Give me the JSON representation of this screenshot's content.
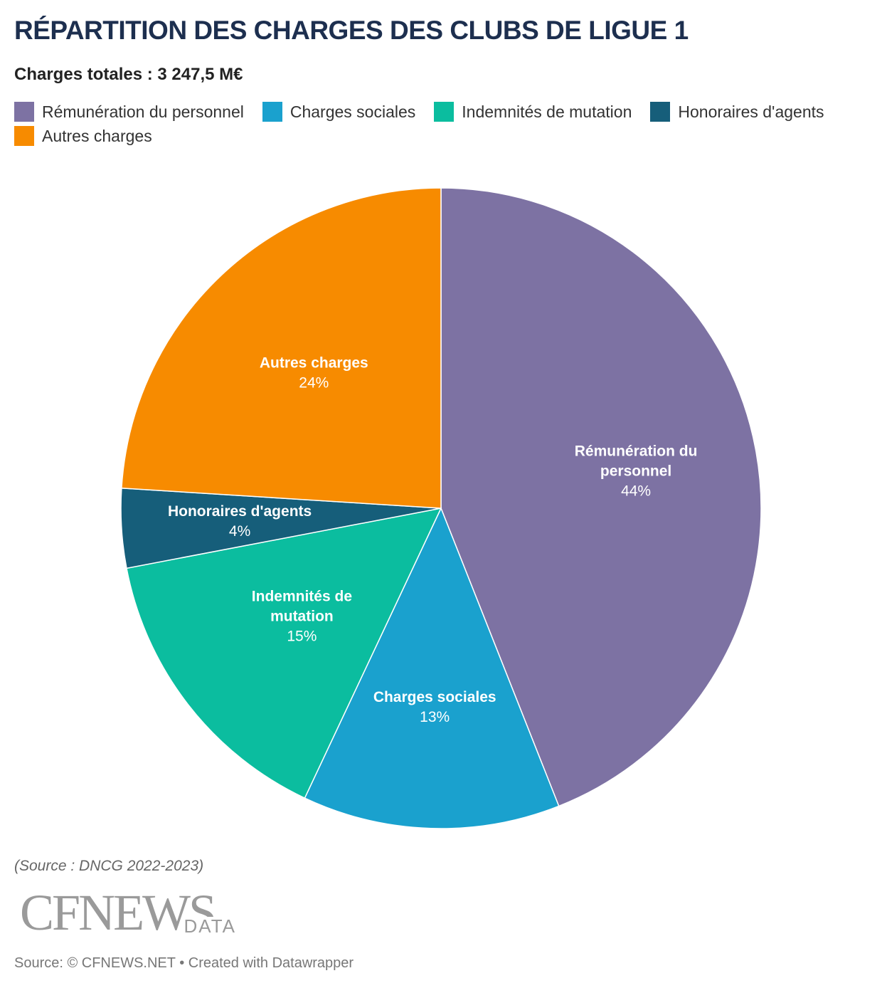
{
  "title": "RÉPARTITION DES CHARGES DES CLUBS DE LIGUE 1",
  "subtitle": "Charges totales : 3 247,5 M€",
  "source_note": "(Source : DNCG 2022-2023)",
  "logo": {
    "main": "CFNEWS",
    "sub": "DATA"
  },
  "footer": "Source: © CFNEWS.NET • Created with Datawrapper",
  "chart_data": {
    "type": "pie",
    "unit": "%",
    "slices": [
      {
        "label": "Rémunération du personnel",
        "lines": [
          "Rémunération du",
          "personnel"
        ],
        "value": 44,
        "value_label": "44%",
        "color": "#7d72a3"
      },
      {
        "label": "Charges sociales",
        "lines": [
          "Charges sociales"
        ],
        "value": 13,
        "value_label": "13%",
        "color": "#1aa1ce"
      },
      {
        "label": "Indemnités de mutation",
        "lines": [
          "Indemnités de",
          "mutation"
        ],
        "value": 15,
        "value_label": "15%",
        "color": "#0bbd9f"
      },
      {
        "label": "Honoraires d'agents",
        "lines": [
          "Honoraires d'agents"
        ],
        "value": 4,
        "value_label": "4%",
        "color": "#165e7a"
      },
      {
        "label": "Autres charges",
        "lines": [
          "Autres charges"
        ],
        "value": 24,
        "value_label": "24%",
        "color": "#f78b00"
      }
    ]
  }
}
